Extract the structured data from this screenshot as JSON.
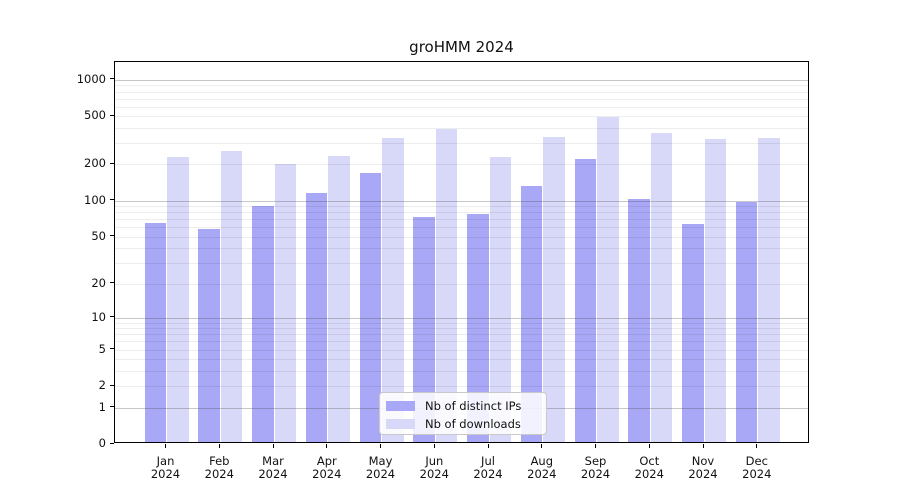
{
  "chart_data": {
    "type": "bar",
    "title": "groHMM 2024",
    "scale": "log1p",
    "categories": [
      "Jan 2024",
      "Feb 2024",
      "Mar 2024",
      "Apr 2024",
      "May 2024",
      "Jun 2024",
      "Jul 2024",
      "Aug 2024",
      "Sep 2024",
      "Oct 2024",
      "Nov 2024",
      "Dec 2024"
    ],
    "series": [
      {
        "name": "Nb of distinct IPs",
        "color": "#a8a8f6",
        "values": [
          63,
          56,
          87,
          112,
          163,
          70,
          75,
          127,
          215,
          100,
          62,
          94
        ]
      },
      {
        "name": "Nb of downloads",
        "color": "#d8d8f8",
        "values": [
          220,
          248,
          195,
          227,
          320,
          378,
          222,
          326,
          474,
          347,
          312,
          320
        ]
      }
    ],
    "xlabel": "",
    "ylabel": "",
    "ylim": [
      0,
      1400
    ],
    "y_ticks": [
      1000,
      500,
      200,
      100,
      50,
      20,
      10,
      5,
      2,
      1,
      0
    ],
    "grid": "both",
    "grid_major_values": [
      1,
      10,
      100,
      1000
    ],
    "grid_minor_values": [
      2,
      3,
      4,
      5,
      6,
      7,
      8,
      9,
      20,
      30,
      40,
      50,
      60,
      70,
      80,
      90,
      200,
      300,
      400,
      500,
      600,
      700,
      800,
      900
    ],
    "legend_position": "lower center",
    "colors": {
      "major_grid": "rgba(70,70,70,0.30)",
      "minor_grid": "rgba(0,0,0,0.07)",
      "spine": "#000000",
      "text": "#111111",
      "background": "#ffffff"
    }
  }
}
